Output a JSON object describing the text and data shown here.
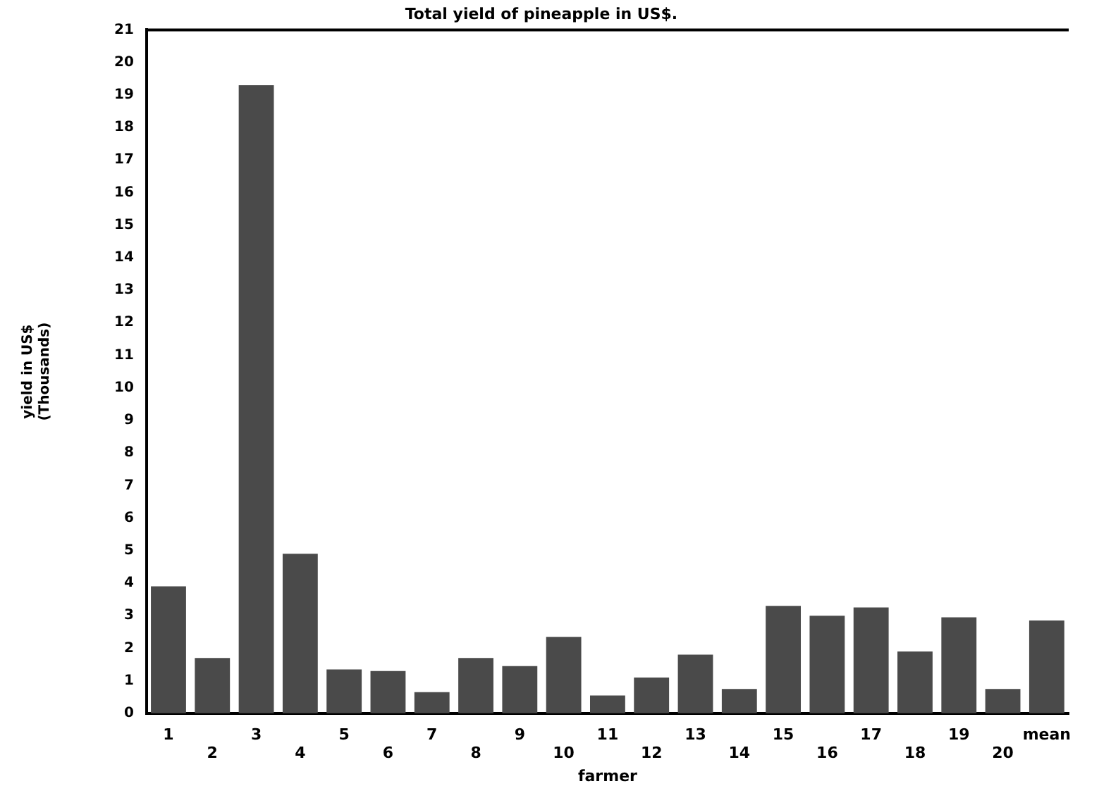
{
  "chart_data": {
    "type": "bar",
    "title": "Total yield of pineapple in US$.",
    "xlabel": "farmer",
    "ylabel": "yield in US$\n(Thousands)",
    "categories": [
      "1",
      "2",
      "3",
      "4",
      "5",
      "6",
      "7",
      "8",
      "9",
      "10",
      "11",
      "12",
      "13",
      "14",
      "15",
      "16",
      "17",
      "18",
      "19",
      "20",
      "mean"
    ],
    "values": [
      3.9,
      1.7,
      19.3,
      4.9,
      1.35,
      1.3,
      0.65,
      1.7,
      1.45,
      2.35,
      0.55,
      1.1,
      1.8,
      0.75,
      3.3,
      3.0,
      3.25,
      1.9,
      2.95,
      0.75,
      2.85
    ],
    "color": "#4a4a4a",
    "ylim": [
      0,
      21
    ],
    "yticks": [
      0,
      1,
      2,
      3,
      4,
      5,
      6,
      7,
      8,
      9,
      10,
      11,
      12,
      13,
      14,
      15,
      16,
      17,
      18,
      19,
      20,
      21
    ],
    "grid": false,
    "legend": false
  }
}
